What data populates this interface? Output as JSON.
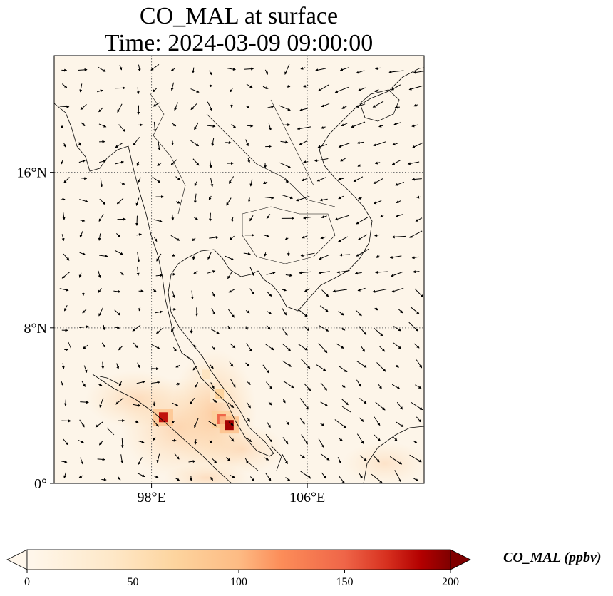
{
  "title": {
    "line1": "CO_MAL at surface",
    "line2": "Time: 2024-03-09 09:00:00"
  },
  "map": {
    "lon_range": [
      93,
      112
    ],
    "lat_range": [
      0,
      22
    ],
    "background_color": "#fdf5e9",
    "gridline_style": "dotted",
    "lon_ticks": [
      {
        "value": 98,
        "label": "98°E"
      },
      {
        "value": 106,
        "label": "106°E"
      }
    ],
    "lat_ticks": [
      {
        "value": 16,
        "label": "16°N"
      },
      {
        "value": 8,
        "label": "8°N"
      },
      {
        "value": 0,
        "label": "0°"
      }
    ]
  },
  "colorbar": {
    "label": "CO_MAL (ppbv)",
    "colormap": "OrRd",
    "range": [
      0,
      200
    ],
    "extend": "both",
    "ticks": [
      {
        "value": 0,
        "label": "0"
      },
      {
        "value": 50,
        "label": "50"
      },
      {
        "value": 100,
        "label": "100"
      },
      {
        "value": 150,
        "label": "150"
      },
      {
        "value": 200,
        "label": "200"
      }
    ]
  },
  "hotspots": [
    {
      "lon": 98.6,
      "lat": 3.4,
      "value": 180
    },
    {
      "lon": 101.6,
      "lat": 3.3,
      "value": 150
    },
    {
      "lon": 102.0,
      "lat": 3.0,
      "value": 190
    },
    {
      "lon": 101.5,
      "lat": 4.6,
      "value": 70
    },
    {
      "lon": 100.8,
      "lat": 5.6,
      "value": 45
    }
  ]
}
